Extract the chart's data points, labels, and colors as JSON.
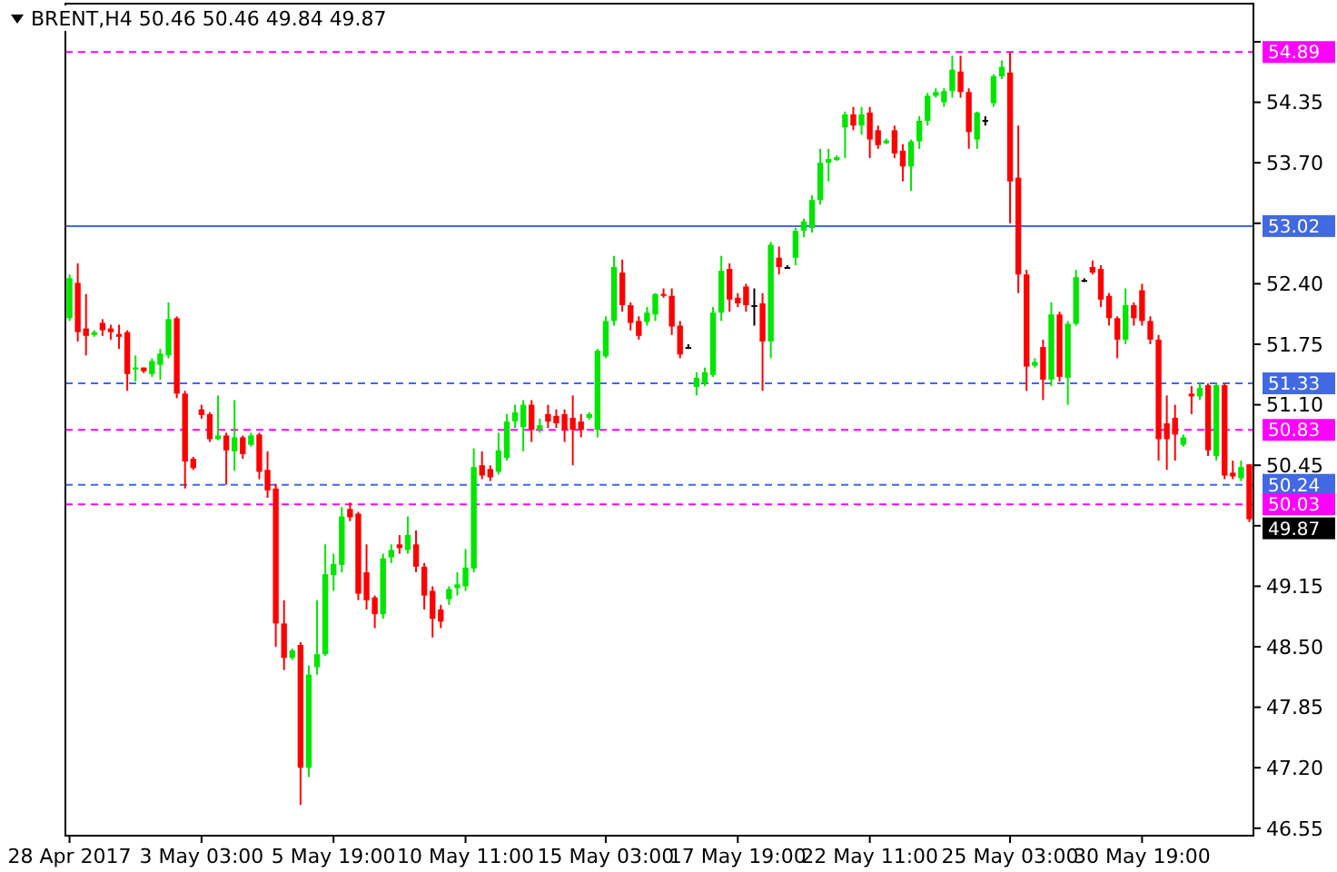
{
  "chart_data": {
    "type": "candlestick",
    "title": "BRENT,H4  50.46 50.46 49.84 49.87",
    "categories": [
      "28 Apr 2017",
      null,
      null,
      null,
      null,
      null,
      null,
      null,
      null,
      null,
      null,
      null,
      null,
      null,
      null,
      null,
      "3 May 03:00",
      null,
      null,
      null,
      null,
      null,
      null,
      null,
      null,
      null,
      null,
      null,
      null,
      null,
      null,
      null,
      "5 May 19:00",
      null,
      null,
      null,
      null,
      null,
      null,
      null,
      null,
      null,
      null,
      null,
      null,
      null,
      null,
      null,
      "10 May 11:00",
      null,
      null,
      null,
      null,
      null,
      null,
      null,
      null,
      null,
      null,
      null,
      null,
      null,
      null,
      null,
      null,
      "15 May 03:00",
      null,
      null,
      null,
      null,
      null,
      null,
      null,
      null,
      null,
      null,
      null,
      null,
      null,
      null,
      null,
      "17 May 19:00",
      null,
      null,
      null,
      null,
      null,
      null,
      null,
      null,
      null,
      null,
      null,
      null,
      null,
      null,
      null,
      "22 May 11:00",
      null,
      null,
      null,
      null,
      null,
      null,
      null,
      null,
      null,
      null,
      null,
      null,
      null,
      null,
      null,
      null,
      "25 May 03:00",
      null,
      null,
      null,
      null,
      null,
      null,
      null,
      null,
      null,
      null,
      null,
      null,
      null,
      null,
      null,
      "30 May 19:00",
      null,
      null,
      null,
      null,
      null,
      null,
      null,
      null,
      null,
      null,
      null,
      null,
      null
    ],
    "ohlc": [
      [
        52.03,
        52.5,
        52.0,
        52.46
      ],
      [
        52.41,
        52.62,
        51.78,
        51.88
      ],
      [
        51.92,
        52.29,
        51.63,
        51.84
      ],
      [
        51.85,
        51.9,
        51.83,
        51.88
      ],
      [
        51.98,
        52.02,
        51.84,
        51.9
      ],
      [
        51.92,
        51.96,
        51.8,
        51.88
      ],
      [
        51.86,
        51.96,
        51.7,
        51.83
      ],
      [
        51.88,
        51.9,
        51.25,
        51.43
      ],
      [
        51.48,
        51.63,
        51.35,
        51.5
      ],
      [
        51.5,
        51.5,
        51.44,
        51.46
      ],
      [
        51.43,
        51.6,
        51.4,
        51.57
      ],
      [
        51.53,
        51.7,
        51.37,
        51.65
      ],
      [
        51.63,
        52.2,
        51.6,
        52.02
      ],
      [
        52.03,
        52.05,
        51.17,
        51.22
      ],
      [
        51.22,
        51.25,
        50.2,
        50.49
      ],
      [
        50.52,
        50.54,
        50.4,
        50.42
      ],
      [
        51.05,
        51.1,
        50.95,
        50.99
      ],
      [
        51.0,
        51.02,
        50.7,
        50.73
      ],
      [
        50.73,
        51.2,
        50.72,
        50.77
      ],
      [
        50.77,
        50.8,
        50.24,
        50.61
      ],
      [
        50.6,
        51.15,
        50.39,
        50.75
      ],
      [
        50.75,
        50.77,
        50.52,
        50.57
      ],
      [
        50.67,
        50.8,
        50.65,
        50.77
      ],
      [
        50.78,
        50.8,
        50.3,
        50.38
      ],
      [
        50.4,
        50.6,
        50.1,
        50.18
      ],
      [
        50.2,
        50.25,
        48.5,
        48.75
      ],
      [
        48.75,
        49.0,
        48.25,
        48.38
      ],
      [
        48.38,
        48.48,
        48.36,
        48.46
      ],
      [
        48.52,
        48.55,
        46.8,
        47.2
      ],
      [
        47.2,
        48.3,
        47.1,
        48.2
      ],
      [
        48.28,
        49.0,
        48.2,
        48.42
      ],
      [
        48.42,
        49.6,
        48.4,
        49.28
      ],
      [
        49.27,
        49.5,
        49.1,
        49.39
      ],
      [
        49.38,
        50.0,
        49.3,
        49.9
      ],
      [
        49.98,
        50.05,
        49.85,
        49.89
      ],
      [
        49.93,
        49.95,
        49.0,
        49.07
      ],
      [
        49.3,
        49.6,
        48.9,
        49.0
      ],
      [
        49.03,
        49.05,
        48.7,
        48.85
      ],
      [
        48.85,
        49.5,
        48.8,
        49.45
      ],
      [
        49.46,
        49.6,
        49.4,
        49.54
      ],
      [
        49.6,
        49.7,
        49.5,
        49.56
      ],
      [
        49.54,
        49.9,
        49.5,
        49.7
      ],
      [
        49.6,
        49.75,
        49.3,
        49.36
      ],
      [
        49.36,
        49.4,
        48.9,
        49.05
      ],
      [
        49.1,
        49.15,
        48.6,
        48.8
      ],
      [
        48.9,
        48.95,
        48.7,
        48.77
      ],
      [
        49.01,
        49.15,
        48.95,
        49.12
      ],
      [
        49.13,
        49.3,
        49.05,
        49.17
      ],
      [
        49.15,
        49.55,
        49.1,
        49.35
      ],
      [
        49.34,
        50.63,
        49.3,
        50.43
      ],
      [
        50.45,
        50.6,
        50.3,
        50.34
      ],
      [
        50.41,
        50.45,
        50.28,
        50.32
      ],
      [
        50.38,
        50.8,
        50.35,
        50.61
      ],
      [
        50.53,
        51.0,
        50.5,
        50.92
      ],
      [
        50.92,
        51.1,
        50.85,
        51.02
      ],
      [
        50.86,
        51.15,
        50.6,
        51.1
      ],
      [
        51.1,
        51.15,
        50.7,
        50.83
      ],
      [
        50.84,
        50.95,
        50.8,
        50.88
      ],
      [
        51.0,
        51.1,
        50.85,
        50.92
      ],
      [
        50.98,
        51.05,
        50.85,
        50.9
      ],
      [
        51.0,
        51.05,
        50.7,
        50.83
      ],
      [
        50.96,
        51.2,
        50.45,
        50.83
      ],
      [
        50.92,
        51.0,
        50.75,
        50.83
      ],
      [
        50.96,
        51.02,
        50.94,
        51.0
      ],
      [
        50.83,
        51.7,
        50.75,
        51.68
      ],
      [
        51.62,
        52.05,
        51.6,
        52.0
      ],
      [
        52.0,
        52.7,
        51.95,
        52.58
      ],
      [
        52.52,
        52.66,
        52.1,
        52.17
      ],
      [
        52.17,
        52.2,
        51.9,
        51.98
      ],
      [
        52.0,
        52.05,
        51.8,
        51.84
      ],
      [
        51.99,
        52.15,
        51.95,
        52.09
      ],
      [
        52.07,
        52.3,
        52.0,
        52.29
      ],
      [
        52.29,
        52.35,
        52.25,
        52.27
      ],
      [
        52.27,
        52.35,
        51.85,
        51.94
      ],
      [
        51.95,
        52.0,
        51.6,
        51.64
      ],
      [
        51.72,
        51.75,
        51.7,
        51.72
      ],
      [
        51.29,
        51.45,
        51.2,
        51.39
      ],
      [
        51.33,
        51.5,
        51.3,
        51.45
      ],
      [
        51.42,
        52.15,
        51.4,
        52.09
      ],
      [
        52.09,
        52.7,
        52.0,
        52.54
      ],
      [
        52.56,
        52.62,
        52.1,
        52.23
      ],
      [
        52.25,
        52.3,
        52.15,
        52.19
      ],
      [
        52.37,
        52.4,
        52.1,
        52.17
      ],
      [
        52.17,
        52.35,
        51.95,
        52.17
      ],
      [
        52.19,
        52.3,
        51.25,
        51.78
      ],
      [
        51.78,
        52.85,
        51.6,
        52.82
      ],
      [
        52.68,
        52.8,
        52.5,
        52.58
      ],
      [
        52.58,
        52.6,
        52.56,
        52.58
      ],
      [
        52.68,
        53.0,
        52.6,
        52.97
      ],
      [
        52.97,
        53.1,
        52.9,
        53.07
      ],
      [
        53.0,
        53.35,
        52.95,
        53.3
      ],
      [
        53.3,
        53.85,
        53.25,
        53.7
      ],
      [
        53.7,
        53.85,
        53.5,
        53.74
      ],
      [
        53.73,
        53.78,
        53.72,
        53.76
      ],
      [
        54.08,
        54.25,
        53.75,
        54.22
      ],
      [
        54.22,
        54.3,
        54.05,
        54.1
      ],
      [
        54.1,
        54.3,
        54.0,
        54.22
      ],
      [
        54.24,
        54.3,
        53.75,
        53.95
      ],
      [
        54.05,
        54.1,
        53.85,
        53.89
      ],
      [
        53.91,
        53.96,
        53.9,
        53.94
      ],
      [
        54.05,
        54.1,
        53.75,
        53.8
      ],
      [
        53.83,
        53.9,
        53.5,
        53.66
      ],
      [
        53.66,
        53.95,
        53.4,
        53.93
      ],
      [
        53.93,
        54.2,
        53.85,
        54.15
      ],
      [
        54.15,
        54.45,
        54.1,
        54.42
      ],
      [
        54.42,
        54.5,
        54.4,
        54.46
      ],
      [
        54.35,
        54.5,
        54.3,
        54.47
      ],
      [
        54.47,
        54.85,
        54.4,
        54.7
      ],
      [
        54.68,
        54.85,
        54.4,
        54.46
      ],
      [
        54.46,
        54.5,
        53.85,
        54.03
      ],
      [
        53.95,
        54.25,
        53.85,
        54.24
      ],
      [
        54.16,
        54.2,
        54.1,
        54.16
      ],
      [
        54.34,
        54.65,
        54.3,
        54.63
      ],
      [
        54.63,
        54.8,
        54.6,
        54.73
      ],
      [
        54.67,
        54.89,
        53.05,
        53.5
      ],
      [
        53.54,
        54.1,
        52.3,
        52.5
      ],
      [
        52.5,
        52.55,
        51.25,
        51.51
      ],
      [
        51.52,
        51.6,
        51.5,
        51.56
      ],
      [
        51.72,
        51.8,
        51.15,
        51.37
      ],
      [
        51.37,
        52.2,
        51.3,
        52.07
      ],
      [
        52.07,
        52.1,
        51.35,
        51.4
      ],
      [
        51.39,
        52.0,
        51.1,
        51.97
      ],
      [
        51.97,
        52.55,
        51.95,
        52.47
      ],
      [
        52.44,
        52.46,
        52.42,
        52.44
      ],
      [
        52.58,
        52.65,
        52.5,
        52.52
      ],
      [
        52.56,
        52.6,
        52.15,
        52.23
      ],
      [
        52.27,
        52.3,
        51.95,
        52.03
      ],
      [
        52.03,
        52.05,
        51.6,
        51.8
      ],
      [
        51.8,
        52.35,
        51.75,
        52.17
      ],
      [
        52.17,
        52.2,
        51.95,
        52.03
      ],
      [
        52.33,
        52.4,
        51.95,
        52.0
      ],
      [
        52.0,
        52.05,
        51.75,
        51.8
      ],
      [
        51.8,
        51.85,
        50.5,
        50.73
      ],
      [
        50.9,
        51.2,
        50.4,
        50.73
      ],
      [
        50.96,
        51.1,
        50.5,
        50.78
      ],
      [
        50.67,
        50.78,
        50.65,
        50.75
      ],
      [
        51.22,
        51.3,
        51.0,
        51.19
      ],
      [
        51.19,
        51.33,
        51.15,
        51.28
      ],
      [
        51.31,
        51.33,
        50.55,
        50.61
      ],
      [
        50.55,
        51.33,
        50.5,
        51.31
      ],
      [
        51.31,
        51.33,
        50.3,
        50.34
      ],
      [
        50.37,
        50.5,
        50.3,
        50.33
      ],
      [
        50.31,
        50.5,
        50.28,
        50.43
      ],
      [
        50.46,
        50.46,
        49.84,
        49.87
      ]
    ],
    "ylim": [
      46.47,
      55.41
    ],
    "yticks": [
      {
        "value": 55.0,
        "label": null
      },
      54.35,
      {
        "value": 53.7,
        "label": "53.70"
      },
      {
        "value": 53.05,
        "label": null
      },
      {
        "value": 52.4,
        "label": "52.40"
      },
      51.75,
      {
        "value": 51.1,
        "label": "51.10"
      },
      50.45,
      {
        "value": 49.8,
        "label": null
      },
      49.15,
      {
        "value": 48.5,
        "label": "48.50"
      },
      47.85,
      {
        "value": 47.2,
        "label": "47.20"
      },
      46.55
    ],
    "ref_lines": [
      {
        "axis": "y",
        "value": 54.89,
        "label": "54.89",
        "color": "#ff00ff",
        "line_style": "dashed"
      },
      {
        "axis": "y",
        "value": 53.02,
        "label": "53.02",
        "color": "#4169e1",
        "line_style": "solid"
      },
      {
        "axis": "y",
        "value": 51.33,
        "label": "51.33",
        "color": "#4169e1",
        "line_style": "dashed"
      },
      {
        "axis": "y",
        "value": 50.83,
        "label": "50.83",
        "color": "#ff00ff",
        "line_style": "dashed"
      },
      {
        "axis": "y",
        "value": 50.24,
        "label": "50.24",
        "color": "#4169e1",
        "line_style": "dashed"
      },
      {
        "axis": "y",
        "value": 50.03,
        "label": "50.03",
        "color": "#ff00ff",
        "line_style": "dashed"
      }
    ],
    "annotations": [
      "49.87"
    ]
  }
}
